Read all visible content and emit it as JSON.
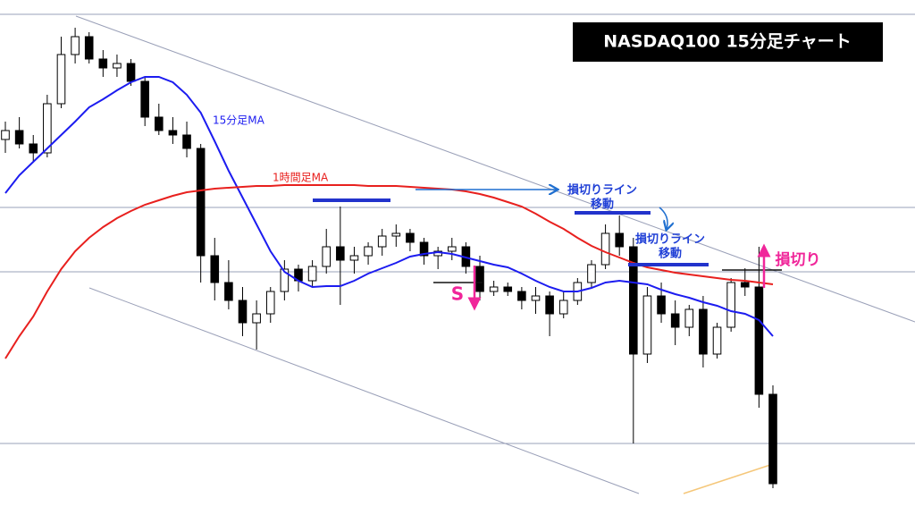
{
  "chart_data": {
    "type": "candlestick",
    "title": "NASDAQ100 15分足チャート",
    "ylim": [
      0,
      576
    ],
    "up_color": "#ffffff",
    "down_color": "#000000",
    "ohlc": [
      [
        420,
        440,
        405,
        430
      ],
      [
        430,
        445,
        410,
        415
      ],
      [
        415,
        425,
        395,
        405
      ],
      [
        405,
        470,
        400,
        460
      ],
      [
        460,
        535,
        455,
        515
      ],
      [
        515,
        545,
        505,
        535
      ],
      [
        535,
        540,
        505,
        510
      ],
      [
        510,
        520,
        490,
        500
      ],
      [
        500,
        515,
        490,
        505
      ],
      [
        505,
        510,
        480,
        485
      ],
      [
        485,
        490,
        435,
        445
      ],
      [
        445,
        460,
        425,
        430
      ],
      [
        430,
        445,
        415,
        425
      ],
      [
        425,
        440,
        400,
        410
      ],
      [
        410,
        415,
        260,
        290
      ],
      [
        290,
        310,
        240,
        260
      ],
      [
        260,
        285,
        230,
        240
      ],
      [
        240,
        255,
        200,
        215
      ],
      [
        215,
        240,
        185,
        225
      ],
      [
        225,
        255,
        215,
        250
      ],
      [
        250,
        285,
        240,
        275
      ],
      [
        275,
        280,
        250,
        262
      ],
      [
        262,
        285,
        255,
        278
      ],
      [
        278,
        320,
        270,
        300
      ],
      [
        300,
        345,
        235,
        285
      ],
      [
        285,
        300,
        270,
        290
      ],
      [
        290,
        305,
        280,
        300
      ],
      [
        300,
        320,
        290,
        312
      ],
      [
        312,
        325,
        300,
        315
      ],
      [
        315,
        320,
        295,
        305
      ],
      [
        305,
        310,
        280,
        290
      ],
      [
        290,
        300,
        275,
        295
      ],
      [
        295,
        310,
        285,
        300
      ],
      [
        300,
        305,
        270,
        278
      ],
      [
        278,
        290,
        240,
        250
      ],
      [
        250,
        262,
        245,
        255
      ],
      [
        255,
        260,
        245,
        250
      ],
      [
        250,
        255,
        230,
        240
      ],
      [
        240,
        255,
        225,
        245
      ],
      [
        245,
        250,
        200,
        225
      ],
      [
        225,
        250,
        220,
        240
      ],
      [
        240,
        265,
        235,
        260
      ],
      [
        260,
        285,
        255,
        280
      ],
      [
        280,
        325,
        275,
        315
      ],
      [
        315,
        335,
        290,
        300
      ],
      [
        300,
        310,
        80,
        180
      ],
      [
        180,
        255,
        170,
        245
      ],
      [
        245,
        260,
        215,
        225
      ],
      [
        225,
        240,
        190,
        210
      ],
      [
        210,
        235,
        200,
        230
      ],
      [
        230,
        245,
        165,
        180
      ],
      [
        180,
        215,
        175,
        210
      ],
      [
        210,
        265,
        205,
        260
      ],
      [
        260,
        276,
        245,
        255
      ],
      [
        255,
        300,
        120,
        135
      ],
      [
        135,
        145,
        30,
        35
      ]
    ],
    "series": [
      {
        "name": "15分足MA",
        "color": "#1c1cf0",
        "values": [
          360,
          380,
          395,
          410,
          425,
          440,
          456,
          465,
          475,
          484,
          490,
          490,
          484,
          470,
          450,
          418,
          385,
          355,
          325,
          295,
          272,
          262,
          255,
          256,
          256,
          262,
          270,
          276,
          282,
          289,
          292,
          294,
          292,
          288,
          284,
          280,
          277,
          270,
          262,
          255,
          250,
          250,
          254,
          260,
          262,
          260,
          258,
          252,
          247,
          243,
          238,
          234,
          228,
          225,
          218,
          200
        ]
      },
      {
        "name": "1時間足MA",
        "color": "#e8201e",
        "values": [
          175,
          200,
          222,
          250,
          275,
          295,
          310,
          322,
          332,
          340,
          347,
          352,
          357,
          361,
          363,
          365,
          366,
          367,
          368,
          368,
          369,
          369,
          369,
          369,
          369,
          369,
          368,
          368,
          368,
          367,
          366,
          365,
          364,
          362,
          359,
          355,
          350,
          345,
          337,
          328,
          320,
          310,
          301,
          294,
          288,
          282,
          277,
          274,
          271,
          269,
          267,
          265,
          263,
          262,
          260,
          258
        ]
      }
    ],
    "annotations": [
      "損切りライン",
      "移動",
      "損切りライン",
      "移動",
      "S",
      "損切り"
    ]
  }
}
